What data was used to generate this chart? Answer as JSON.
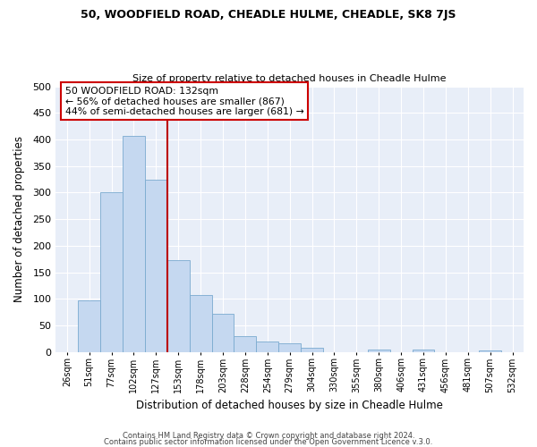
{
  "title1": "50, WOODFIELD ROAD, CHEADLE HULME, CHEADLE, SK8 7JS",
  "title2": "Size of property relative to detached houses in Cheadle Hulme",
  "xlabel": "Distribution of detached houses by size in Cheadle Hulme",
  "ylabel": "Number of detached properties",
  "bin_labels": [
    "26sqm",
    "51sqm",
    "77sqm",
    "102sqm",
    "127sqm",
    "153sqm",
    "178sqm",
    "203sqm",
    "228sqm",
    "254sqm",
    "279sqm",
    "304sqm",
    "330sqm",
    "355sqm",
    "380sqm",
    "406sqm",
    "431sqm",
    "456sqm",
    "481sqm",
    "507sqm",
    "532sqm"
  ],
  "bar_heights": [
    0,
    97,
    300,
    407,
    325,
    173,
    107,
    72,
    29,
    19,
    16,
    8,
    0,
    0,
    5,
    0,
    4,
    0,
    0,
    3,
    0
  ],
  "bar_color": "#c5d8f0",
  "bar_edgecolor": "#7aaad0",
  "bar_width": 1.0,
  "vline_x": 4.5,
  "vline_color": "#bb0000",
  "annotation_title": "50 WOODFIELD ROAD: 132sqm",
  "annotation_line1": "← 56% of detached houses are smaller (867)",
  "annotation_line2": "44% of semi-detached houses are larger (681) →",
  "annotation_box_edgecolor": "#cc0000",
  "ylim": [
    0,
    500
  ],
  "yticks": [
    0,
    50,
    100,
    150,
    200,
    250,
    300,
    350,
    400,
    450,
    500
  ],
  "footer1": "Contains HM Land Registry data © Crown copyright and database right 2024.",
  "footer2": "Contains public sector information licensed under the Open Government Licence v.3.0.",
  "bg_color": "#ffffff",
  "plot_bg_color": "#e8eef8"
}
